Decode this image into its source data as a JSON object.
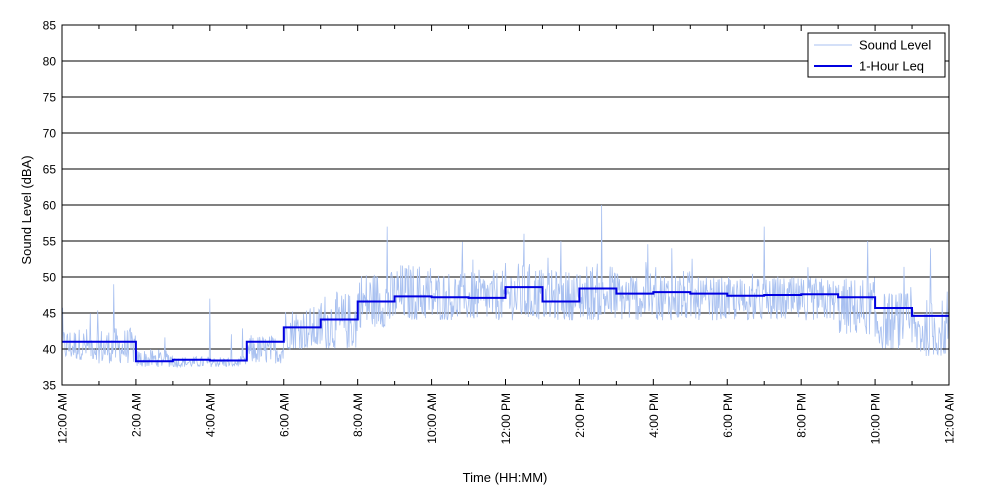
{
  "chart_data": {
    "type": "line",
    "xlabel": "Time (HH:MM)",
    "ylabel": "Sound Level (dBA)",
    "ylim": [
      35,
      85
    ],
    "xlim_hours": [
      0,
      24
    ],
    "y_ticks": [
      "35",
      "40",
      "45",
      "50",
      "55",
      "60",
      "65",
      "70",
      "75",
      "80",
      "85"
    ],
    "x_ticks": [
      {
        "hour": 0,
        "label": "12:00 AM"
      },
      {
        "hour": 2,
        "label": "2:00 AM"
      },
      {
        "hour": 4,
        "label": "4:00 AM"
      },
      {
        "hour": 6,
        "label": "6:00 AM"
      },
      {
        "hour": 8,
        "label": "8:00 AM"
      },
      {
        "hour": 10,
        "label": "10:00 AM"
      },
      {
        "hour": 12,
        "label": "12:00 PM"
      },
      {
        "hour": 14,
        "label": "2:00 PM"
      },
      {
        "hour": 16,
        "label": "4:00 PM"
      },
      {
        "hour": 18,
        "label": "6:00 PM"
      },
      {
        "hour": 20,
        "label": "8:00 PM"
      },
      {
        "hour": 22,
        "label": "10:00 PM"
      },
      {
        "hour": 24,
        "label": "12:00 AM"
      }
    ],
    "grid": "horizontal",
    "legend_position": "top-right",
    "series": [
      {
        "name": "Sound Level",
        "color": "#a8c0f0",
        "style": "thin-line",
        "hourly_typical_min": [
          38.5,
          38,
          37.5,
          37.5,
          37.5,
          38,
          40,
          40,
          43,
          44,
          44,
          44,
          44,
          44,
          44,
          44,
          44,
          44,
          44,
          44,
          44,
          42,
          40,
          39
        ],
        "hourly_typical_max": [
          43,
          43,
          40,
          39,
          39,
          42,
          46,
          48,
          51,
          52,
          51,
          51,
          52,
          51,
          52,
          51,
          51,
          50,
          50,
          50,
          50,
          50,
          48,
          47
        ],
        "peaks": [
          {
            "hour": 1.4,
            "value": 49
          },
          {
            "hour": 4.0,
            "value": 47
          },
          {
            "hour": 8.8,
            "value": 57
          },
          {
            "hour": 12.5,
            "value": 56
          },
          {
            "hour": 13.5,
            "value": 55
          },
          {
            "hour": 14.6,
            "value": 60
          },
          {
            "hour": 16.5,
            "value": 54
          },
          {
            "hour": 19.0,
            "value": 57
          },
          {
            "hour": 21.8,
            "value": 55
          },
          {
            "hour": 23.5,
            "value": 54
          }
        ]
      },
      {
        "name": "1-Hour Leq",
        "color": "#0000e0",
        "style": "step",
        "hourly_values": [
          41.0,
          41.0,
          38.3,
          38.5,
          38.4,
          41.0,
          43.0,
          44.1,
          46.6,
          47.3,
          47.2,
          47.1,
          48.6,
          46.6,
          48.4,
          47.7,
          47.9,
          47.7,
          47.4,
          47.5,
          47.6,
          47.2,
          45.7,
          44.6
        ]
      }
    ]
  }
}
